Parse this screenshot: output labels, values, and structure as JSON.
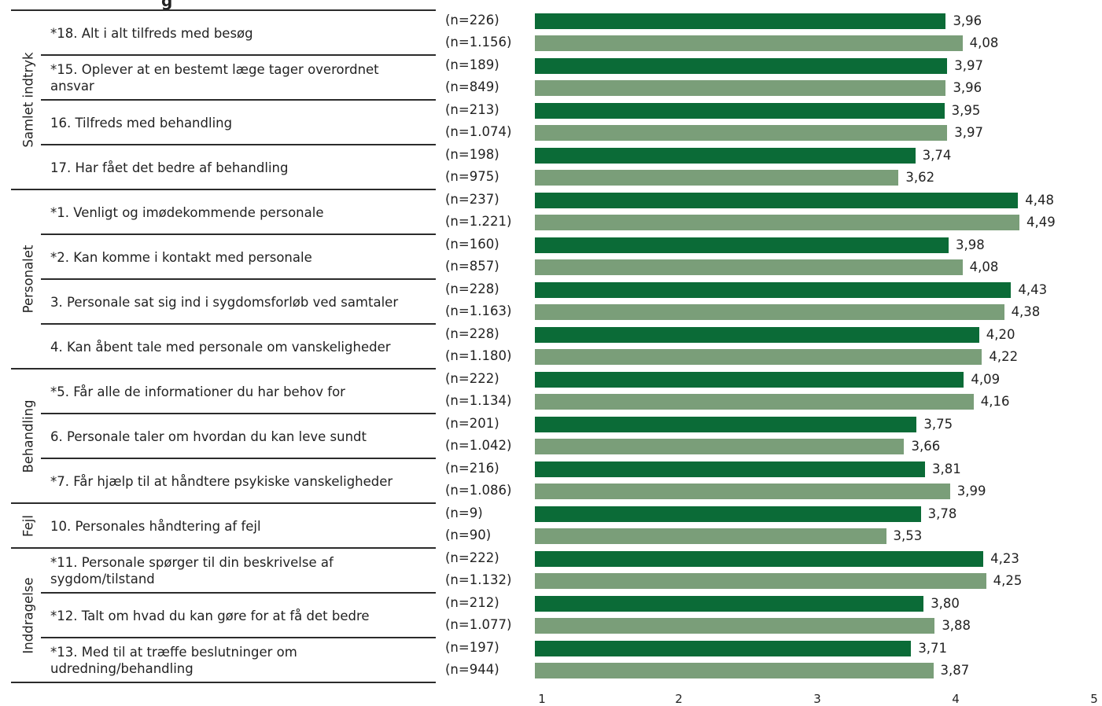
{
  "chart_data": {
    "type": "bar",
    "orientation": "horizontal",
    "title_fragment": "g",
    "xlim": [
      1,
      5
    ],
    "x_ticks": [
      "1",
      "2",
      "3",
      "4",
      "5"
    ],
    "colors": {
      "series_a": "#0b6b37",
      "series_b": "#7a9e79",
      "rule": "#2b2b2b"
    },
    "groups": [
      {
        "name": "Samlet indtryk",
        "questions": [
          {
            "label": "*18. Alt i alt tilfreds med besøg",
            "n_a": "(n=226)",
            "val_a": "3,96",
            "v_a": 3.96,
            "n_b": "(n=1.156)",
            "val_b": "4,08",
            "v_b": 4.08
          },
          {
            "label": "*15. Oplever at en bestemt læge tager overordnet ansvar",
            "n_a": "(n=189)",
            "val_a": "3,97",
            "v_a": 3.97,
            "n_b": "(n=849)",
            "val_b": "3,96",
            "v_b": 3.96
          },
          {
            "label": "16. Tilfreds med behandling",
            "n_a": "(n=213)",
            "val_a": "3,95",
            "v_a": 3.95,
            "n_b": "(n=1.074)",
            "val_b": "3,97",
            "v_b": 3.97
          },
          {
            "label": "17. Har fået det bedre af behandling",
            "n_a": "(n=198)",
            "val_a": "3,74",
            "v_a": 3.74,
            "n_b": "(n=975)",
            "val_b": "3,62",
            "v_b": 3.62
          }
        ]
      },
      {
        "name": "Personalet",
        "questions": [
          {
            "label": "*1. Venligt og imødekommende personale",
            "n_a": "(n=237)",
            "val_a": "4,48",
            "v_a": 4.48,
            "n_b": "(n=1.221)",
            "val_b": "4,49",
            "v_b": 4.49
          },
          {
            "label": "*2. Kan komme i kontakt med personale",
            "n_a": "(n=160)",
            "val_a": "3,98",
            "v_a": 3.98,
            "n_b": "(n=857)",
            "val_b": "4,08",
            "v_b": 4.08
          },
          {
            "label": "3. Personale sat sig ind i sygdomsforløb ved samtaler",
            "n_a": "(n=228)",
            "val_a": "4,43",
            "v_a": 4.43,
            "n_b": "(n=1.163)",
            "val_b": "4,38",
            "v_b": 4.38
          },
          {
            "label": "4. Kan åbent tale med personale om vanskeligheder",
            "n_a": "(n=228)",
            "val_a": "4,20",
            "v_a": 4.2,
            "n_b": "(n=1.180)",
            "val_b": "4,22",
            "v_b": 4.22
          }
        ]
      },
      {
        "name": "Behandling",
        "questions": [
          {
            "label": "*5. Får alle de informationer du har behov for",
            "n_a": "(n=222)",
            "val_a": "4,09",
            "v_a": 4.09,
            "n_b": "(n=1.134)",
            "val_b": "4,16",
            "v_b": 4.16
          },
          {
            "label": "6. Personale taler om hvordan du kan leve sundt",
            "n_a": "(n=201)",
            "val_a": "3,75",
            "v_a": 3.75,
            "n_b": "(n=1.042)",
            "val_b": "3,66",
            "v_b": 3.66
          },
          {
            "label": "*7. Får hjælp til at håndtere psykiske vanskeligheder",
            "n_a": "(n=216)",
            "val_a": "3,81",
            "v_a": 3.81,
            "n_b": "(n=1.086)",
            "val_b": "3,99",
            "v_b": 3.99
          }
        ]
      },
      {
        "name": "Fejl",
        "questions": [
          {
            "label": "10. Personales håndtering af fejl",
            "n_a": "(n=9)",
            "val_a": "3,78",
            "v_a": 3.78,
            "n_b": "(n=90)",
            "val_b": "3,53",
            "v_b": 3.53
          }
        ]
      },
      {
        "name": "Inddragelse",
        "questions": [
          {
            "label": "*11. Personale spørger til din beskrivelse af sygdom/tilstand",
            "n_a": "(n=222)",
            "val_a": "4,23",
            "v_a": 4.23,
            "n_b": "(n=1.132)",
            "val_b": "4,25",
            "v_b": 4.25
          },
          {
            "label": "*12. Talt om hvad du kan gøre for at få det bedre",
            "n_a": "(n=212)",
            "val_a": "3,80",
            "v_a": 3.8,
            "n_b": "(n=1.077)",
            "val_b": "3,88",
            "v_b": 3.88
          },
          {
            "label": "*13. Med til at træffe beslutninger om udredning/behandling",
            "n_a": "(n=197)",
            "val_a": "3,71",
            "v_a": 3.71,
            "n_b": "(n=944)",
            "val_b": "3,87",
            "v_b": 3.87
          }
        ]
      }
    ]
  }
}
